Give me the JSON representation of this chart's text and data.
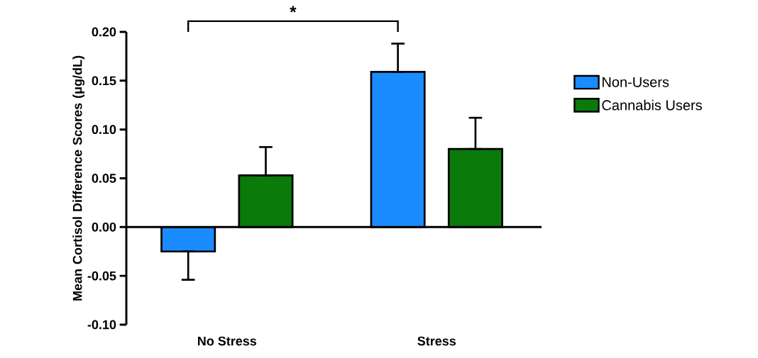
{
  "chart_data": {
    "type": "bar",
    "ylabel": "Mean Cortisol Difference Scores (μg/dL)",
    "categories": [
      "No Stress",
      "Stress"
    ],
    "series": [
      {
        "name": "Non-Users",
        "color": "#1a8cff",
        "values": [
          -0.025,
          0.159
        ],
        "errors": [
          0.029,
          0.029
        ]
      },
      {
        "name": "Cannabis Users",
        "color": "#0a7a0a",
        "values": [
          0.053,
          0.08
        ],
        "errors": [
          0.029,
          0.032
        ]
      }
    ],
    "ylim": [
      -0.1,
      0.2
    ],
    "yticks": [
      {
        "value": -0.1,
        "label": "-0.10"
      },
      {
        "value": -0.05,
        "label": "-0.05"
      },
      {
        "value": 0,
        "label": "0.00"
      },
      {
        "value": 0.05,
        "label": "0.05"
      },
      {
        "value": 0.1,
        "label": "0.10"
      },
      {
        "value": 0.15,
        "label": "0.15"
      },
      {
        "value": 0.2,
        "label": "0.20"
      }
    ],
    "legend": "right",
    "annotations": [
      "*"
    ]
  }
}
